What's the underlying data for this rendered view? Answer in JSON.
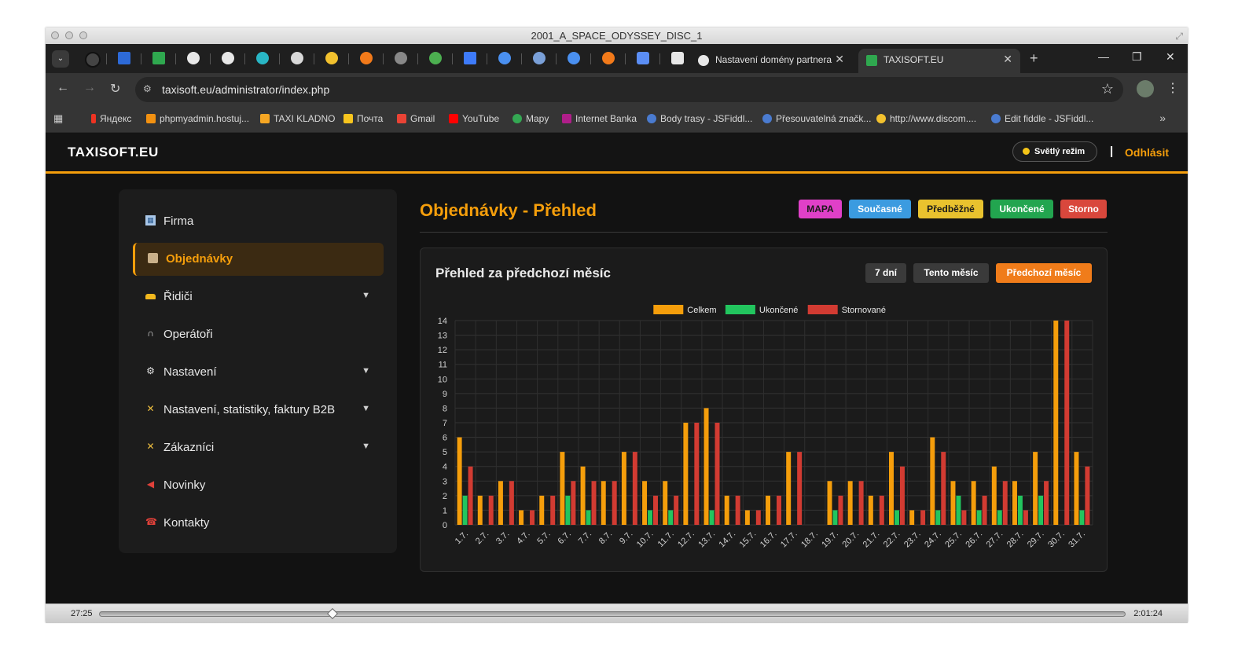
{
  "player": {
    "title": "2001_A_SPACE_ODYSSEY_DISC_1",
    "time_current": "27:25",
    "time_total": "2:01:24",
    "progress": 0.226
  },
  "browser": {
    "tabs": [
      {
        "title": "Nastavení domény partnera",
        "active": false
      },
      {
        "title": "TAXISOFT.EU",
        "active": true
      }
    ],
    "url": "taxisoft.eu/administrator/index.php",
    "bookmarks": [
      "Яндекс",
      "phpmyadmin.hostuj...",
      "TAXI KLADNO",
      "Почта",
      "Gmail",
      "YouTube",
      "Mapy",
      "Internet Banka",
      "Body trasy - JSFiddl...",
      "Přesouvatelná značk...",
      "http://www.discom....",
      "Edit fiddle - JSFiddl..."
    ]
  },
  "site": {
    "brand": "TAXISOFT.EU",
    "theme_toggle": "Světlý režim",
    "separator": "|",
    "logout": "Odhlásit",
    "accent": "#f59e0b"
  },
  "sidebar": {
    "items": [
      {
        "label": "Firma",
        "icon": "building-icon",
        "active": false,
        "has_submenu": false
      },
      {
        "label": "Objednávky",
        "icon": "clipboard-icon",
        "active": true,
        "has_submenu": false
      },
      {
        "label": "Řidiči",
        "icon": "taxi-icon",
        "active": false,
        "has_submenu": true
      },
      {
        "label": "Operátoři",
        "icon": "headphones-icon",
        "active": false,
        "has_submenu": false
      },
      {
        "label": "Nastavení",
        "icon": "gear-icon",
        "active": false,
        "has_submenu": true
      },
      {
        "label": "Nastavení, statistiky, faktury B2B",
        "icon": "tools-icon",
        "active": false,
        "has_submenu": true
      },
      {
        "label": "Zákazníci",
        "icon": "tools-icon",
        "active": false,
        "has_submenu": true
      },
      {
        "label": "Novinky",
        "icon": "megaphone-icon",
        "active": false,
        "has_submenu": false
      },
      {
        "label": "Kontakty",
        "icon": "phone-icon",
        "active": false,
        "has_submenu": false
      }
    ]
  },
  "main": {
    "title": "Objednávky - Přehled",
    "status_buttons": [
      {
        "label": "MAPA",
        "color": "#e040c8"
      },
      {
        "label": "Současné",
        "color": "#3b9be0"
      },
      {
        "label": "Předběžné",
        "color": "#e9c22e"
      },
      {
        "label": "Ukončené",
        "color": "#22a54f"
      },
      {
        "label": "Storno",
        "color": "#d9473c"
      }
    ],
    "card_title": "Přehled za předchozí měsíc",
    "range_buttons": [
      {
        "label": "7 dní",
        "active": false
      },
      {
        "label": "Tento měsíc",
        "active": false
      },
      {
        "label": "Předchozí měsíc",
        "active": true
      }
    ]
  },
  "chart_data": {
    "type": "bar",
    "categories": [
      "1.7.",
      "2.7.",
      "3.7.",
      "4.7.",
      "5.7.",
      "6.7.",
      "7.7.",
      "8.7.",
      "9.7.",
      "10.7.",
      "11.7.",
      "12.7.",
      "13.7.",
      "14.7.",
      "15.7.",
      "16.7.",
      "17.7.",
      "18.7.",
      "19.7.",
      "20.7.",
      "21.7.",
      "22.7.",
      "23.7.",
      "24.7.",
      "25.7.",
      "26.7.",
      "27.7.",
      "28.7.",
      "29.7.",
      "30.7.",
      "31.7."
    ],
    "series": [
      {
        "name": "Celkem",
        "color": "#f59e0b",
        "values": [
          6,
          2,
          3,
          1,
          2,
          5,
          4,
          3,
          5,
          3,
          3,
          7,
          8,
          2,
          1,
          2,
          5,
          0,
          3,
          3,
          2,
          5,
          1,
          6,
          3,
          3,
          4,
          3,
          5,
          14,
          5
        ]
      },
      {
        "name": "Ukončené",
        "color": "#22c55e",
        "values": [
          2,
          0,
          0,
          0,
          0,
          2,
          1,
          0,
          0,
          1,
          1,
          0,
          1,
          0,
          0,
          0,
          0,
          0,
          1,
          0,
          0,
          1,
          0,
          1,
          2,
          1,
          1,
          2,
          2,
          0,
          1
        ]
      },
      {
        "name": "Stornované",
        "color": "#d23b32",
        "values": [
          4,
          2,
          3,
          1,
          2,
          3,
          3,
          3,
          5,
          2,
          2,
          7,
          7,
          2,
          1,
          2,
          5,
          0,
          2,
          3,
          2,
          4,
          1,
          5,
          1,
          2,
          3,
          1,
          3,
          14,
          4
        ]
      }
    ],
    "ylim": [
      0,
      14
    ],
    "yticks": [
      0,
      1,
      2,
      3,
      4,
      5,
      6,
      7,
      8,
      9,
      10,
      11,
      12,
      13,
      14
    ],
    "grid": true,
    "legend_position": "top-center"
  }
}
